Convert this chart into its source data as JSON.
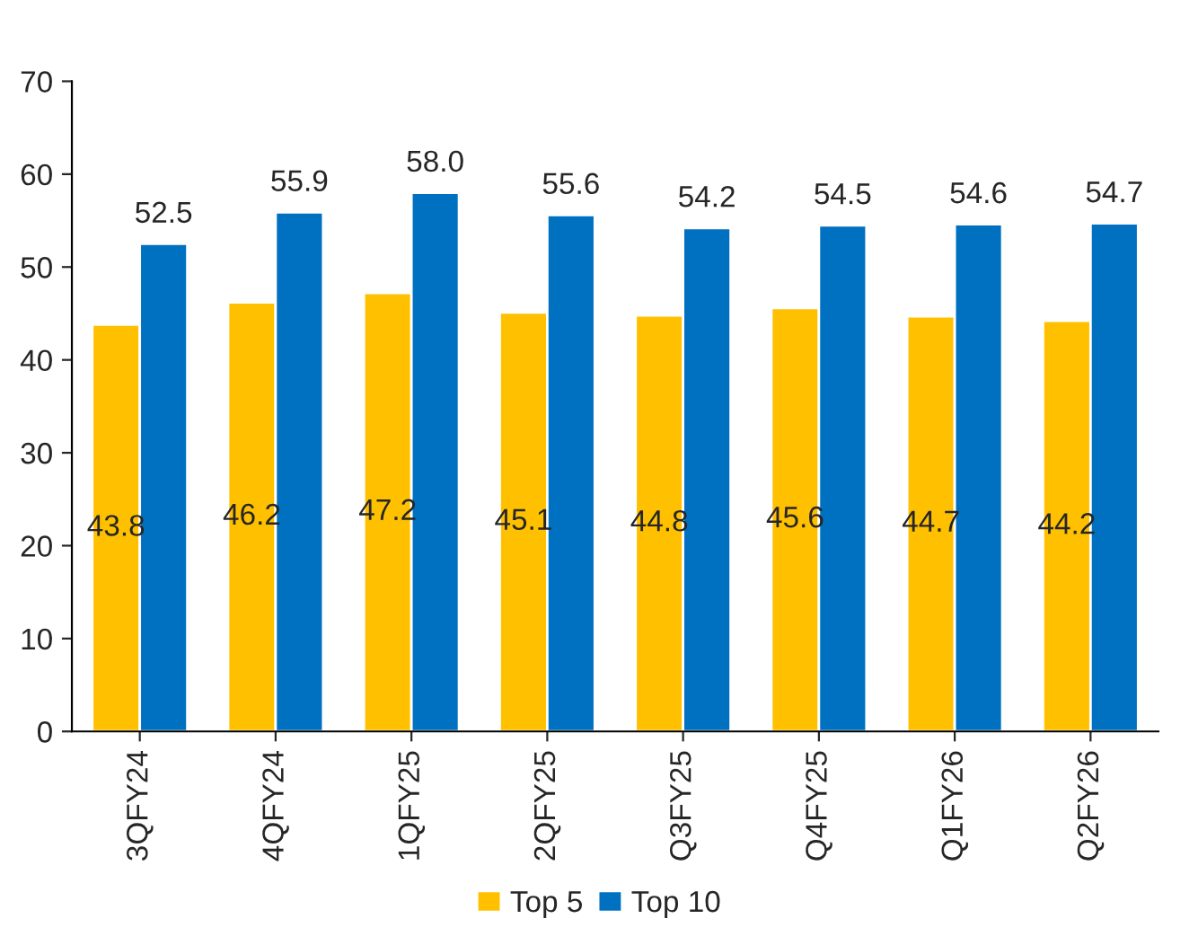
{
  "chart_data": {
    "type": "bar",
    "categories": [
      "3QFY24",
      "4QFY24",
      "1QFY25",
      "2QFY25",
      "Q3FY25",
      "Q4FY25",
      "Q1FY26",
      "Q2FY26"
    ],
    "series": [
      {
        "name": "Top 5",
        "color": "#ffc000",
        "values": [
          43.8,
          46.2,
          47.2,
          45.1,
          44.8,
          45.6,
          44.7,
          44.2
        ],
        "value_labels": [
          "43.8",
          "46.2",
          "47.2",
          "45.1",
          "44.8",
          "45.6",
          "44.7",
          "44.2"
        ]
      },
      {
        "name": "Top 10",
        "color": "#0070c0",
        "values": [
          52.5,
          55.9,
          58.0,
          55.6,
          54.2,
          54.5,
          54.6,
          54.7
        ],
        "value_labels": [
          "52.5",
          "55.9",
          "58.0",
          "55.6",
          "54.2",
          "54.5",
          "54.6",
          "54.7"
        ]
      }
    ],
    "ylim": [
      0,
      70
    ],
    "yticks": [
      0,
      10,
      20,
      30,
      40,
      50,
      60,
      70
    ],
    "legend": "bottom",
    "grid": false
  }
}
